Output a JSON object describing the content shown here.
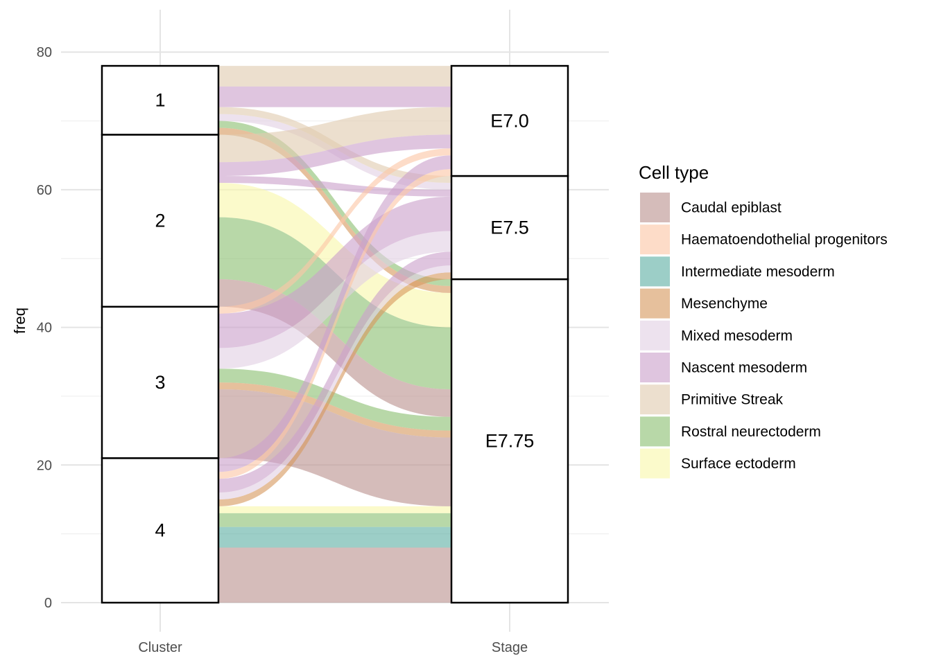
{
  "chart_data": {
    "type": "alluvial",
    "axes": [
      "Cluster",
      "Stage"
    ],
    "ylabel": "freq",
    "ylim": [
      0,
      82
    ],
    "yticks": [
      0,
      20,
      40,
      60,
      80
    ],
    "grid": true,
    "legend": {
      "title": "Cell type",
      "position": "right"
    },
    "axis1_strata": [
      "4",
      "3",
      "2",
      "1"
    ],
    "axis2_strata": [
      "E7.75",
      "E7.5",
      "E7.0"
    ],
    "cell_types": [
      {
        "name": "Caudal epiblast",
        "color": "#bc938f"
      },
      {
        "name": "Haematoendothelial progenitors",
        "color": "#fbc6a6"
      },
      {
        "name": "Intermediate mesoderm",
        "color": "#5fb0a4"
      },
      {
        "name": "Mesenchyme",
        "color": "#d79a60"
      },
      {
        "name": "Mixed mesoderm",
        "color": "#e2d0e4"
      },
      {
        "name": "Nascent mesoderm",
        "color": "#cba1cc"
      },
      {
        "name": "Primitive Streak",
        "color": "#e0cbb0"
      },
      {
        "name": "Rostral neurectoderm",
        "color": "#8cc072"
      },
      {
        "name": "Surface ectoderm",
        "color": "#f8f7ab"
      }
    ],
    "flows": [
      {
        "cluster": "4",
        "stage": "E7.75",
        "cell_type": "Surface ectoderm",
        "freq": 1
      },
      {
        "cluster": "4",
        "stage": "E7.75",
        "cell_type": "Rostral neurectoderm",
        "freq": 2
      },
      {
        "cluster": "4",
        "stage": "E7.75",
        "cell_type": "Intermediate mesoderm",
        "freq": 3
      },
      {
        "cluster": "4",
        "stage": "E7.75",
        "cell_type": "Caudal epiblast",
        "freq": 8
      },
      {
        "cluster": "3",
        "stage": "E7.75",
        "cell_type": "Rostral neurectoderm",
        "freq": 2
      },
      {
        "cluster": "3",
        "stage": "E7.75",
        "cell_type": "Mesenchyme",
        "freq": 1
      },
      {
        "cluster": "3",
        "stage": "E7.75",
        "cell_type": "Caudal epiblast",
        "freq": 10
      },
      {
        "cluster": "2",
        "stage": "E7.75",
        "cell_type": "Surface ectoderm",
        "freq": 5
      },
      {
        "cluster": "2",
        "stage": "E7.75",
        "cell_type": "Rostral neurectoderm",
        "freq": 9
      },
      {
        "cluster": "2",
        "stage": "E7.75",
        "cell_type": "Caudal epiblast",
        "freq": 4
      },
      {
        "cluster": "1",
        "stage": "E7.75",
        "cell_type": "Rostral neurectoderm",
        "freq": 1
      },
      {
        "cluster": "1",
        "stage": "E7.75",
        "cell_type": "Mesenchyme",
        "freq": 1
      },
      {
        "cluster": "4",
        "stage": "E7.5",
        "cell_type": "Mesenchyme",
        "freq": 1
      },
      {
        "cluster": "4",
        "stage": "E7.5",
        "cell_type": "Mixed mesoderm",
        "freq": 1
      },
      {
        "cluster": "4",
        "stage": "E7.5",
        "cell_type": "Nascent mesoderm",
        "freq": 2
      },
      {
        "cluster": "3",
        "stage": "E7.5",
        "cell_type": "Mixed mesoderm",
        "freq": 3
      },
      {
        "cluster": "3",
        "stage": "E7.5",
        "cell_type": "Nascent mesoderm",
        "freq": 5
      },
      {
        "cluster": "2",
        "stage": "E7.5",
        "cell_type": "Nascent mesoderm",
        "freq": 1
      },
      {
        "cluster": "1",
        "stage": "E7.5",
        "cell_type": "Mixed mesoderm",
        "freq": 1
      },
      {
        "cluster": "1",
        "stage": "E7.5",
        "cell_type": "Primitive Streak",
        "freq": 1
      },
      {
        "cluster": "4",
        "stage": "E7.0",
        "cell_type": "Haematoendothelial progenitors",
        "freq": 1
      },
      {
        "cluster": "4",
        "stage": "E7.0",
        "cell_type": "Nascent mesoderm",
        "freq": 2
      },
      {
        "cluster": "3",
        "stage": "E7.0",
        "cell_type": "Haematoendothelial progenitors",
        "freq": 1
      },
      {
        "cluster": "2",
        "stage": "E7.0",
        "cell_type": "Primitive Streak",
        "freq": 4
      },
      {
        "cluster": "2",
        "stage": "E7.0",
        "cell_type": "Nascent mesoderm",
        "freq": 2
      },
      {
        "cluster": "1",
        "stage": "E7.0",
        "cell_type": "Primitive Streak",
        "freq": 3
      },
      {
        "cluster": "1",
        "stage": "E7.0",
        "cell_type": "Nascent mesoderm",
        "freq": 3
      }
    ]
  }
}
